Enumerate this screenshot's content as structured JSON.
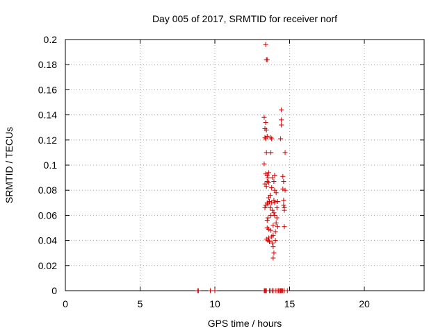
{
  "chart_data": {
    "type": "scatter",
    "title": "Day 005 of 2017, SRMTID for receiver norf",
    "xlabel": "GPS time / hours",
    "ylabel": "SRMTID / TECUs",
    "xlim": [
      0,
      24
    ],
    "ylim": [
      0,
      0.2
    ],
    "xticks": [
      0,
      5,
      10,
      15,
      20
    ],
    "xtick_labels": [
      "0",
      "5",
      "10",
      "15",
      "20"
    ],
    "yticks": [
      0,
      0.02,
      0.04,
      0.06,
      0.08,
      0.1,
      0.12,
      0.14,
      0.16,
      0.18,
      0.2
    ],
    "ytick_labels": [
      "0",
      "0.02",
      "0.04",
      "0.06",
      "0.08",
      "0.1",
      "0.12",
      "0.14",
      "0.16",
      "0.18",
      "0.2"
    ],
    "grid": true,
    "marker": "+",
    "color": "#cc0000",
    "series": [
      {
        "points": [
          [
            8.85,
            0
          ],
          [
            8.9,
            0
          ],
          [
            9.7,
            0
          ],
          [
            10.0,
            0
          ],
          [
            13.3,
            0
          ],
          [
            13.35,
            0
          ],
          [
            13.4,
            0
          ],
          [
            13.45,
            0
          ],
          [
            13.65,
            0
          ],
          [
            13.75,
            0
          ],
          [
            13.85,
            0
          ],
          [
            13.9,
            0
          ],
          [
            14.05,
            0
          ],
          [
            14.15,
            0
          ],
          [
            14.25,
            0
          ],
          [
            14.35,
            0
          ],
          [
            14.4,
            0
          ],
          [
            14.45,
            0
          ],
          [
            14.5,
            0
          ],
          [
            14.55,
            0
          ],
          [
            14.65,
            0
          ],
          [
            14.85,
            0
          ],
          [
            13.4,
            0.196
          ],
          [
            13.45,
            0.184
          ],
          [
            13.5,
            0.184
          ],
          [
            13.3,
            0.138
          ],
          [
            13.4,
            0.134
          ],
          [
            13.35,
            0.129
          ],
          [
            13.45,
            0.128
          ],
          [
            13.35,
            0.122
          ],
          [
            13.4,
            0.121
          ],
          [
            13.5,
            0.123
          ],
          [
            13.75,
            0.122
          ],
          [
            13.8,
            0.121
          ],
          [
            13.45,
            0.11
          ],
          [
            13.75,
            0.11
          ],
          [
            13.3,
            0.101
          ],
          [
            13.4,
            0.093
          ],
          [
            13.5,
            0.092
          ],
          [
            13.6,
            0.094
          ],
          [
            13.55,
            0.09
          ],
          [
            13.35,
            0.085
          ],
          [
            13.45,
            0.083
          ],
          [
            13.5,
            0.087
          ],
          [
            13.6,
            0.086
          ],
          [
            13.35,
            0.066
          ],
          [
            13.4,
            0.068
          ],
          [
            13.5,
            0.07
          ],
          [
            13.55,
            0.069
          ],
          [
            13.6,
            0.074
          ],
          [
            13.65,
            0.071
          ],
          [
            13.5,
            0.056
          ],
          [
            13.55,
            0.058
          ],
          [
            13.5,
            0.05
          ],
          [
            13.6,
            0.049
          ],
          [
            13.45,
            0.041
          ],
          [
            13.55,
            0.04
          ],
          [
            13.6,
            0.042
          ],
          [
            13.65,
            0.039
          ],
          [
            13.7,
            0.066
          ],
          [
            13.7,
            0.076
          ],
          [
            13.75,
            0.048
          ],
          [
            13.75,
            0.06
          ],
          [
            13.8,
            0.043
          ],
          [
            13.8,
            0.07
          ],
          [
            13.8,
            0.082
          ],
          [
            13.85,
            0.038
          ],
          [
            13.85,
            0.064
          ],
          [
            13.85,
            0.09
          ],
          [
            13.9,
            0.026
          ],
          [
            13.9,
            0.035
          ],
          [
            13.9,
            0.044
          ],
          [
            13.9,
            0.052
          ],
          [
            13.95,
            0.03
          ],
          [
            13.95,
            0.062
          ],
          [
            13.95,
            0.072
          ],
          [
            13.95,
            0.087
          ],
          [
            14.0,
            0.08
          ],
          [
            14.0,
            0.06
          ],
          [
            14.0,
            0.07
          ],
          [
            14.0,
            0.092
          ],
          [
            14.05,
            0.04
          ],
          [
            14.05,
            0.047
          ],
          [
            14.1,
            0.078
          ],
          [
            14.1,
            0.054
          ],
          [
            14.15,
            0.066
          ],
          [
            14.15,
            0.058
          ],
          [
            14.2,
            0.071
          ],
          [
            14.2,
            0.051
          ],
          [
            14.45,
            0.144
          ],
          [
            14.45,
            0.136
          ],
          [
            14.45,
            0.132
          ],
          [
            14.4,
            0.121
          ],
          [
            14.7,
            0.11
          ],
          [
            14.55,
            0.091
          ],
          [
            14.6,
            0.087
          ],
          [
            14.55,
            0.081
          ],
          [
            14.7,
            0.08
          ],
          [
            14.6,
            0.072
          ],
          [
            14.6,
            0.068
          ],
          [
            14.65,
            0.066
          ],
          [
            14.65,
            0.064
          ],
          [
            14.65,
            0.051
          ]
        ]
      }
    ]
  }
}
